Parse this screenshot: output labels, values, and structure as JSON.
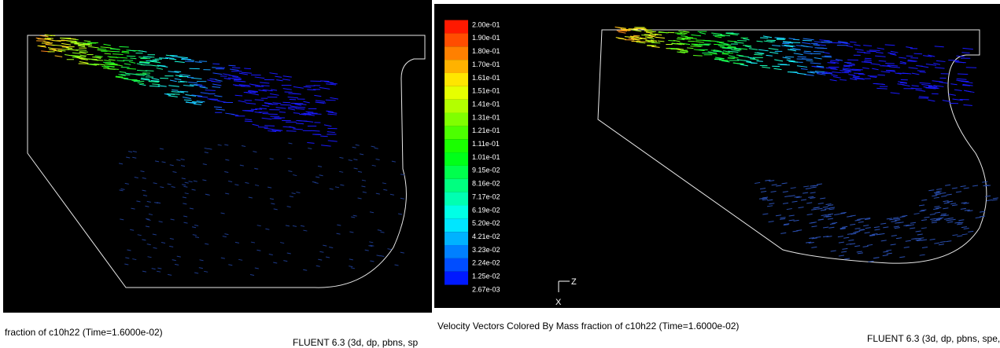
{
  "left_panel": {
    "caption": "fraction of c10h22  (Time=1.6000e-02)",
    "footer": "FLUENT 6.3 (3d, dp, pbns, sp"
  },
  "right_panel": {
    "caption": "Velocity Vectors Colored By Mass fraction of c10h22  (Time=1.6000e-02)",
    "footer": "FLUENT 6.3 (3d, dp, pbns, spe,",
    "colorbar_labels": [
      "2.00e-01",
      "1.90e-01",
      "1.80e-01",
      "1.70e-01",
      "1.61e-01",
      "1.51e-01",
      "1.41e-01",
      "1.31e-01",
      "1.21e-01",
      "1.11e-01",
      "1.01e-01",
      "9.15e-02",
      "8.16e-02",
      "7.17e-02",
      "6.19e-02",
      "5.20e-02",
      "4.21e-02",
      "3.23e-02",
      "2.24e-02",
      "1.25e-02",
      "2.67e-03"
    ],
    "axis_z": "Z",
    "axis_x": "X"
  }
}
